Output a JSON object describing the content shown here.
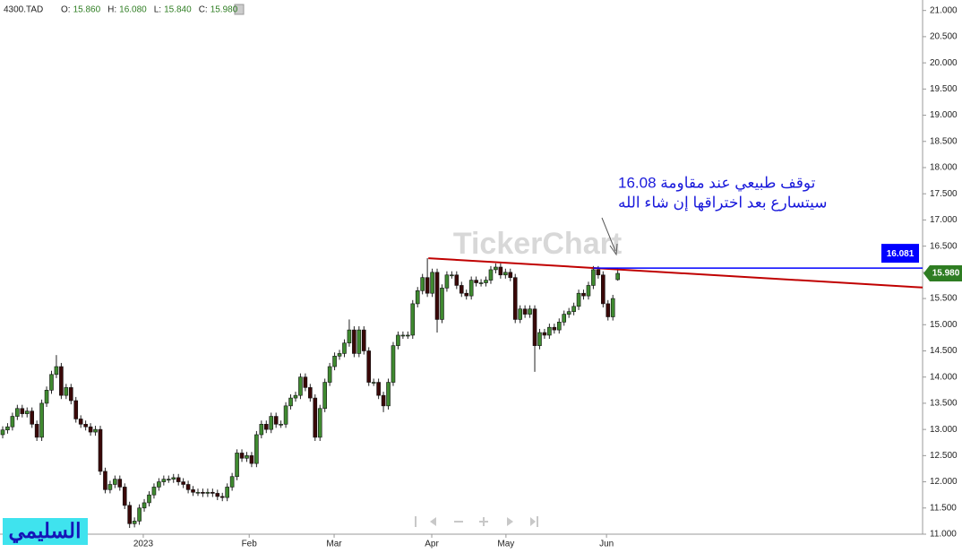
{
  "chart_data": {
    "type": "candlestick",
    "legend": {
      "symbol": "4300.TAD",
      "fields": [
        {
          "label": "O:",
          "value": "15.860"
        },
        {
          "label": "H:",
          "value": "16.080"
        },
        {
          "label": "L:",
          "value": "15.840"
        },
        {
          "label": "C:",
          "value": "15.980"
        }
      ]
    },
    "watermark": "TickerChart",
    "signature": "السليمي",
    "annotation": [
      "توقف طبيعي عند مقاومة 16.08",
      "سيتسارع بعد اختراقها إن شاء الله"
    ],
    "colors": {
      "up": "#3f8a30",
      "down": "#3a0808",
      "wick": "#222222",
      "annotation": "#1a1adb"
    },
    "xlim": [
      -0.55,
      188.45
    ],
    "xticks": [
      {
        "value": 28.8,
        "label": "2023"
      },
      {
        "value": 50.5,
        "label": "Feb"
      },
      {
        "value": 67.9,
        "label": "Mar"
      },
      {
        "value": 87.9,
        "label": "Apr"
      },
      {
        "value": 103.1,
        "label": "May"
      },
      {
        "value": 123.7,
        "label": "Jun"
      }
    ],
    "ylim": [
      11.0,
      21.2
    ],
    "yticks": [
      {
        "value": 11,
        "label": "11.000"
      },
      {
        "value": 11.5,
        "label": "11.500"
      },
      {
        "value": 12,
        "label": "12.000"
      },
      {
        "value": 12.5,
        "label": "12.500"
      },
      {
        "value": 13,
        "label": "13.000"
      },
      {
        "value": 13.5,
        "label": "13.500"
      },
      {
        "value": 14,
        "label": "14.000"
      },
      {
        "value": 14.5,
        "label": "14.500"
      },
      {
        "value": 15,
        "label": "15.000"
      },
      {
        "value": 15.5,
        "label": "15.500"
      },
      {
        "value": 16,
        "label": "16.000"
      },
      {
        "value": 16.5,
        "label": "16.500"
      },
      {
        "value": 17,
        "label": "17.000"
      },
      {
        "value": 17.5,
        "label": "17.500"
      },
      {
        "value": 18,
        "label": "18.000"
      },
      {
        "value": 18.5,
        "label": "18.500"
      },
      {
        "value": 19,
        "label": "19.000"
      },
      {
        "value": 19.5,
        "label": "19.500"
      },
      {
        "value": 20,
        "label": "20.000"
      },
      {
        "value": 20.5,
        "label": "20.500"
      },
      {
        "value": 21,
        "label": "21.000"
      }
    ],
    "grid": false,
    "open": [
      12.9,
      12.99,
      13.05,
      13.25,
      13.4,
      13.3,
      13.35,
      13.1,
      12.85,
      13.5,
      13.75,
      14.05,
      14.2,
      13.65,
      13.8,
      13.55,
      13.2,
      13.1,
      13.05,
      12.95,
      13.0,
      12.2,
      11.85,
      11.95,
      12.05,
      11.9,
      11.55,
      11.2,
      11.25,
      11.5,
      11.6,
      11.75,
      11.9,
      12.0,
      12.05,
      12.05,
      12.08,
      12.0,
      11.95,
      11.85,
      11.8,
      11.8,
      11.78,
      11.8,
      11.78,
      11.72,
      11.7,
      11.9,
      12.1,
      12.55,
      12.45,
      12.5,
      12.35,
      12.9,
      13.1,
      13.0,
      13.25,
      13.1,
      13.1,
      13.45,
      13.6,
      13.65,
      14.0,
      13.8,
      13.6,
      12.85,
      13.4,
      13.9,
      14.2,
      14.4,
      14.45,
      14.65,
      14.9,
      14.45,
      14.9,
      14.5,
      13.9,
      13.9,
      13.65,
      13.45,
      13.9,
      14.6,
      14.8,
      14.8,
      14.8,
      15.4,
      15.65,
      15.9,
      15.6,
      16.0,
      15.1,
      15.7,
      15.95,
      15.95,
      15.75,
      15.6,
      15.55,
      15.85,
      15.8,
      15.8,
      15.85,
      16.05,
      16.1,
      15.95,
      16.0,
      15.9,
      15.1,
      15.3,
      15.2,
      15.3,
      14.6,
      14.85,
      14.8,
      14.95,
      14.9,
      15.05,
      15.2,
      15.25,
      15.35,
      15.6,
      15.55,
      15.75,
      16.05,
      15.95,
      15.4,
      15.15,
      15.86
    ],
    "high": [
      13.06,
      13.12,
      13.32,
      13.47,
      13.47,
      13.42,
      13.42,
      13.17,
      13.57,
      13.82,
      14.12,
      14.42,
      14.27,
      13.87,
      13.87,
      13.62,
      13.27,
      13.17,
      13.12,
      13.07,
      13.07,
      12.27,
      12.02,
      12.12,
      12.12,
      11.97,
      11.62,
      11.32,
      11.57,
      11.67,
      11.82,
      11.97,
      12.07,
      12.12,
      12.12,
      12.15,
      12.15,
      12.07,
      12.02,
      11.92,
      11.87,
      11.87,
      11.87,
      11.87,
      11.85,
      11.79,
      11.97,
      12.17,
      12.62,
      12.62,
      12.57,
      12.57,
      12.97,
      13.17,
      13.17,
      13.32,
      13.32,
      13.17,
      13.52,
      13.67,
      13.72,
      14.07,
      14.07,
      13.87,
      13.67,
      13.47,
      13.97,
      14.27,
      14.47,
      14.52,
      14.72,
      15.1,
      14.97,
      14.97,
      14.97,
      14.57,
      13.97,
      13.97,
      13.72,
      13.97,
      14.67,
      14.87,
      14.87,
      14.87,
      15.47,
      15.72,
      15.97,
      16.27,
      16.07,
      16.07,
      15.77,
      16.02,
      16.02,
      16.02,
      15.82,
      15.67,
      15.92,
      15.92,
      15.87,
      15.92,
      16.12,
      16.17,
      16.17,
      16.07,
      16.07,
      15.97,
      15.37,
      15.37,
      15.37,
      15.37,
      14.92,
      14.92,
      15.02,
      15.02,
      15.12,
      15.27,
      15.32,
      15.42,
      15.67,
      15.67,
      15.82,
      16.12,
      16.12,
      16.02,
      15.47,
      15.57,
      16.08
    ],
    "low": [
      12.83,
      12.92,
      12.98,
      13.18,
      13.23,
      13.23,
      13.03,
      12.78,
      12.78,
      13.43,
      13.68,
      13.98,
      13.58,
      13.58,
      13.48,
      13.13,
      13.03,
      12.98,
      12.88,
      12.88,
      12.13,
      11.78,
      11.78,
      11.88,
      11.83,
      11.48,
      11.12,
      11.13,
      11.18,
      11.43,
      11.53,
      11.68,
      11.83,
      11.93,
      11.98,
      11.98,
      11.93,
      11.88,
      11.78,
      11.73,
      11.73,
      11.71,
      11.71,
      11.71,
      11.65,
      11.63,
      11.63,
      11.83,
      12.03,
      12.38,
      12.38,
      12.28,
      12.28,
      12.83,
      12.93,
      12.93,
      13.03,
      13.03,
      13.03,
      13.38,
      13.53,
      13.58,
      13.73,
      13.53,
      12.78,
      12.78,
      13.33,
      13.83,
      14.13,
      14.33,
      14.38,
      14.58,
      14.38,
      14.38,
      14.43,
      13.83,
      13.83,
      13.58,
      13.33,
      13.38,
      13.83,
      14.53,
      14.73,
      14.73,
      14.73,
      15.33,
      15.58,
      15.53,
      15.53,
      14.85,
      15.03,
      15.63,
      15.88,
      15.68,
      15.53,
      15.48,
      15.48,
      15.73,
      15.73,
      15.73,
      15.78,
      15.98,
      15.88,
      15.88,
      15.83,
      15.03,
      15.03,
      15.13,
      15.13,
      14.1,
      14.53,
      14.73,
      14.73,
      14.83,
      14.83,
      14.98,
      15.13,
      15.18,
      15.28,
      15.48,
      15.48,
      15.68,
      15.88,
      15.33,
      15.08,
      15.08,
      15.84
    ],
    "close": [
      12.99,
      13.05,
      13.25,
      13.4,
      13.3,
      13.35,
      13.1,
      12.85,
      13.5,
      13.75,
      14.05,
      14.2,
      13.65,
      13.8,
      13.55,
      13.2,
      13.1,
      13.05,
      12.95,
      13.0,
      12.2,
      11.85,
      11.95,
      12.05,
      11.9,
      11.55,
      11.2,
      11.25,
      11.5,
      11.6,
      11.75,
      11.9,
      12.0,
      12.05,
      12.05,
      12.08,
      12.0,
      11.95,
      11.85,
      11.8,
      11.8,
      11.78,
      11.8,
      11.78,
      11.72,
      11.7,
      11.9,
      12.1,
      12.55,
      12.45,
      12.5,
      12.35,
      12.9,
      13.1,
      13.0,
      13.25,
      13.1,
      13.1,
      13.45,
      13.6,
      13.65,
      14.0,
      13.8,
      13.6,
      12.85,
      13.4,
      13.9,
      14.2,
      14.4,
      14.45,
      14.65,
      14.9,
      14.45,
      14.9,
      14.5,
      13.9,
      13.9,
      13.65,
      13.45,
      13.9,
      14.6,
      14.8,
      14.8,
      14.8,
      15.4,
      15.65,
      15.9,
      15.6,
      16.0,
      15.1,
      15.7,
      15.95,
      15.95,
      15.75,
      15.6,
      15.55,
      15.85,
      15.8,
      15.8,
      15.85,
      16.05,
      16.1,
      15.95,
      16.0,
      15.9,
      15.1,
      15.3,
      15.2,
      15.3,
      14.6,
      14.85,
      14.8,
      14.95,
      14.9,
      15.05,
      15.2,
      15.25,
      15.35,
      15.6,
      15.55,
      15.75,
      16.05,
      15.95,
      15.4,
      15.15,
      15.5,
      15.98
    ],
    "trendline": {
      "x": [
        87.2,
        188.45
      ],
      "y": [
        16.27,
        15.71
      ],
      "color": "#c00000"
    },
    "hline": {
      "value": 16.081,
      "label": "16.081",
      "x_start": 121,
      "color": "#0000ff"
    },
    "last_price": {
      "value": 15.98,
      "label": "15.980",
      "color": "#2e7d22"
    }
  }
}
